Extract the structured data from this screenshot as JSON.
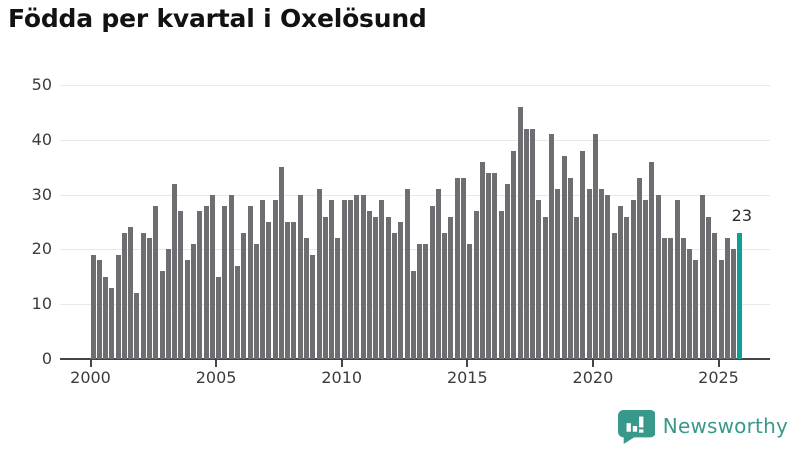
{
  "header": {
    "title": "Födda per kvartal i Oxelösund"
  },
  "chart_data": {
    "type": "bar",
    "title": "Födda per kvartal i Oxelösund",
    "xlabel": "",
    "ylabel": "",
    "ylim": [
      0,
      50
    ],
    "y_ticks": [
      0,
      10,
      20,
      30,
      40,
      50
    ],
    "x_ticks": [
      "2000",
      "2005",
      "2010",
      "2015",
      "2020",
      "2025"
    ],
    "grid": "horizontal",
    "legend": "none",
    "frequency": "quarterly",
    "x_start": "2000 Q1",
    "x_end": "2025 Q4",
    "bar_color": "#6e6e72",
    "series": [
      {
        "name": "Födda per kvartal",
        "values": [
          19,
          18,
          15,
          13,
          19,
          23,
          24,
          12,
          23,
          22,
          28,
          16,
          20,
          32,
          27,
          18,
          21,
          27,
          28,
          30,
          15,
          28,
          30,
          17,
          23,
          28,
          21,
          29,
          25,
          29,
          35,
          25,
          25,
          30,
          22,
          19,
          31,
          26,
          29,
          22,
          29,
          29,
          30,
          30,
          27,
          26,
          29,
          26,
          23,
          25,
          31,
          16,
          21,
          21,
          28,
          31,
          23,
          26,
          33,
          33,
          21,
          27,
          36,
          34,
          34,
          27,
          32,
          38,
          46,
          42,
          42,
          29,
          26,
          41,
          31,
          37,
          33,
          26,
          38,
          31,
          41,
          31,
          30,
          23,
          28,
          26,
          29,
          33,
          29,
          36,
          30,
          22,
          22,
          29,
          22,
          20,
          18,
          30,
          26,
          23,
          18,
          22,
          20,
          23
        ]
      }
    ],
    "highlight": {
      "index": 103,
      "value": 23,
      "label": "23",
      "color": "#0ba198"
    }
  },
  "footer": {
    "brand": "Newsworthy",
    "brand_color": "#38998b",
    "logo_icon": "newsworthy-speech-bubble-bar-chart-icon"
  }
}
